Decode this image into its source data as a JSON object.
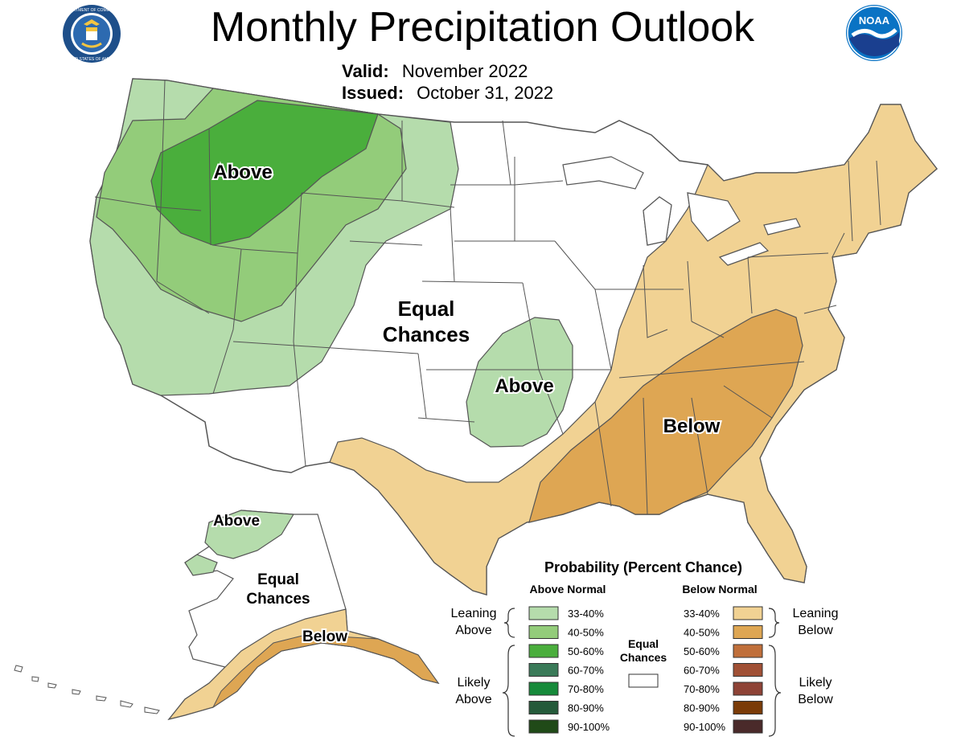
{
  "header": {
    "title": "Monthly Precipitation Outlook",
    "valid_label": "Valid:",
    "valid_value": "November 2022",
    "issued_label": "Issued:",
    "issued_value": "October 31, 2022",
    "doc_seal_text_top": "DEPARTMENT OF COMMERCE",
    "doc_seal_text_bottom": "UNITED STATES OF AMERICA",
    "noaa_logo_text": "NOAA"
  },
  "map": {
    "labels": {
      "nw_above": "Above",
      "equal_line1": "Equal",
      "equal_line2": "Chances",
      "plains_above": "Above",
      "se_below": "Below",
      "ak_above": "Above",
      "ak_equal_line1": "Equal",
      "ak_equal_line2": "Chances",
      "ak_below": "Below"
    }
  },
  "legend": {
    "title": "Probability (Percent Chance)",
    "above_header": "Above Normal",
    "below_header": "Below Normal",
    "leaning_above": [
      "Leaning",
      "Above"
    ],
    "likely_above": [
      "Likely",
      "Above"
    ],
    "leaning_below": [
      "Leaning",
      "Below"
    ],
    "likely_below": [
      "Likely",
      "Below"
    ],
    "equal_label": [
      "Equal",
      "Chances"
    ],
    "above_bins": [
      {
        "label": "33-40%",
        "color": "#b5dcac"
      },
      {
        "label": "40-50%",
        "color": "#93cc7a"
      },
      {
        "label": "50-60%",
        "color": "#4aae3c"
      },
      {
        "label": "60-70%",
        "color": "#3a7a58"
      },
      {
        "label": "70-80%",
        "color": "#168a3a"
      },
      {
        "label": "80-90%",
        "color": "#245a3a"
      },
      {
        "label": "90-100%",
        "color": "#204a18"
      }
    ],
    "below_bins": [
      {
        "label": "33-40%",
        "color": "#f1d293"
      },
      {
        "label": "40-50%",
        "color": "#dea653"
      },
      {
        "label": "50-60%",
        "color": "#c06f3a"
      },
      {
        "label": "60-70%",
        "color": "#a05035"
      },
      {
        "label": "70-80%",
        "color": "#8e4336"
      },
      {
        "label": "80-90%",
        "color": "#7a3b08"
      },
      {
        "label": "90-100%",
        "color": "#4a2a2a"
      }
    ]
  },
  "colors": {
    "above_33": "#b5dcac",
    "above_40": "#93cc7a",
    "above_50": "#4aae3c",
    "below_33": "#f1d293",
    "below_40": "#dea653",
    "equal": "#ffffff",
    "boundary": "#555555"
  }
}
